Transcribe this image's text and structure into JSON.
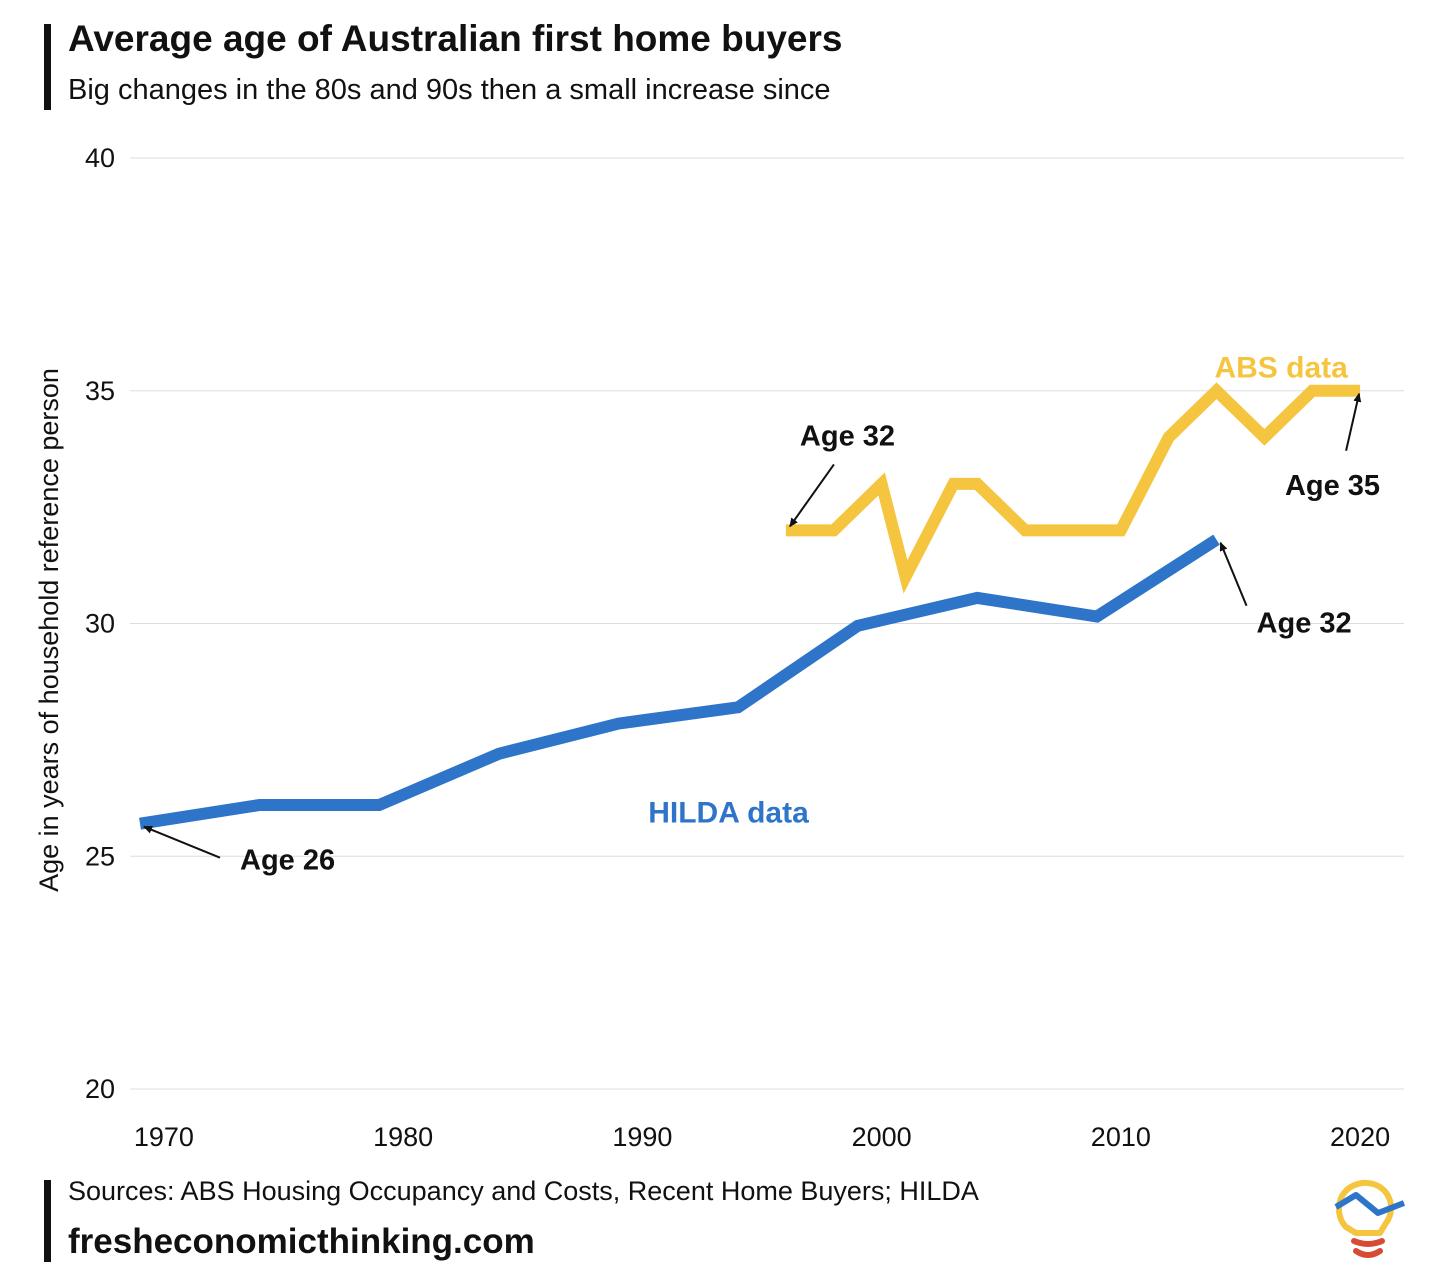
{
  "header": {
    "title": "Average age of Australian first home buyers",
    "subtitle": "Big changes in the 80s and 90s then a small increase since"
  },
  "footer": {
    "sources": "Sources: ABS Housing Occupancy and Costs, Recent Home Buyers; HILDA",
    "website": "fresheconomicthinking.com",
    "logo_icon": "lightbulb-logo-icon"
  },
  "chart_data": {
    "type": "line",
    "title": "Average age of Australian first home buyers",
    "subtitle": "Big changes in the 80s and 90s then a small increase since",
    "ylabel": "Age in years of household reference person",
    "xlabel": "",
    "xlim": [
      1969,
      2021
    ],
    "ylim": [
      20,
      40
    ],
    "x_ticks": [
      1970,
      1980,
      1990,
      2000,
      2010,
      2020
    ],
    "y_ticks": [
      20,
      25,
      30,
      35,
      40
    ],
    "grid": "horizontal",
    "legend": "none (direct labels)",
    "series": [
      {
        "name": "HILDA data",
        "color": "#2e75c9",
        "points": [
          [
            1969,
            25.7
          ],
          [
            1974,
            26.1
          ],
          [
            1979,
            26.1
          ],
          [
            1984,
            27.2
          ],
          [
            1989,
            27.85
          ],
          [
            1994,
            28.2
          ],
          [
            1999,
            29.95
          ],
          [
            2004,
            30.55
          ],
          [
            2009,
            30.15
          ],
          [
            2014,
            31.8
          ]
        ]
      },
      {
        "name": "ABS data",
        "color": "#f5c540",
        "points": [
          [
            1996,
            32
          ],
          [
            1998,
            32
          ],
          [
            2000,
            33
          ],
          [
            2001,
            31
          ],
          [
            2003,
            33
          ],
          [
            2004,
            33
          ],
          [
            2006,
            32
          ],
          [
            2008,
            32
          ],
          [
            2010,
            32
          ],
          [
            2012,
            34
          ],
          [
            2014,
            35
          ],
          [
            2016,
            34
          ],
          [
            2018,
            35
          ],
          [
            2020,
            35
          ]
        ]
      }
    ],
    "annotations": [
      {
        "text": "Age 26",
        "series": "HILDA data",
        "point": [
          1969,
          25.7
        ]
      },
      {
        "text": "Age 32",
        "series": "HILDA data",
        "point": [
          2014,
          31.8
        ]
      },
      {
        "text": "Age 32",
        "series": "ABS data",
        "point": [
          1996,
          32
        ]
      },
      {
        "text": "Age 35",
        "series": "ABS data",
        "point": [
          2020,
          35
        ]
      }
    ]
  }
}
